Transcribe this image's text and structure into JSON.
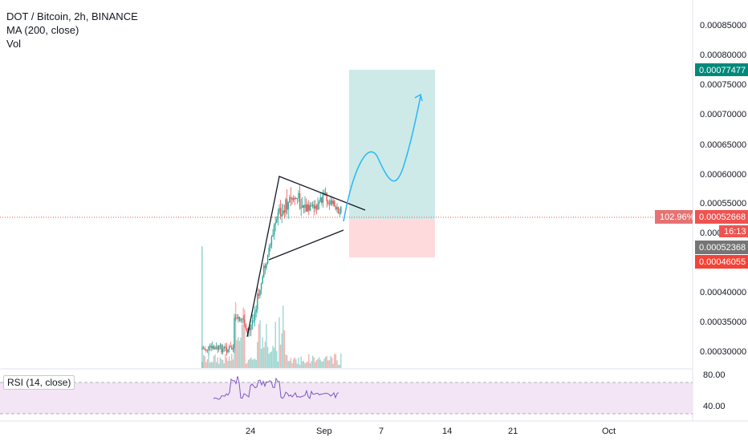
{
  "header": {
    "title": "DOT / Bitcoin, 2h, BINANCE",
    "ma_label": "MA (200, close)",
    "vol_label": "Vol"
  },
  "rsi": {
    "label": "RSI (14, close)",
    "levels": [
      "80.00",
      "40.00"
    ]
  },
  "price_axis": {
    "ticks": [
      "0.00085000",
      "0.00080000",
      "0.00075000",
      "0.00070000",
      "0.00065000",
      "0.00060000",
      "0.00055000",
      "0.00040000",
      "0.00035000",
      "0.00030000"
    ]
  },
  "time_axis": {
    "ticks": [
      "24",
      "Sep",
      "7",
      "14",
      "21",
      "Oct"
    ]
  },
  "badges": {
    "target": "0.00077477",
    "percent": "102.96%",
    "last_price": "0.00052668",
    "countdown": "16:13",
    "hidden_tick": "0.000",
    "ma_value": "0.00052368",
    "stop": "0.00046055"
  },
  "colors": {
    "up": "#26a69a",
    "down": "#ef5350",
    "target_zone": "#b2dfdb",
    "stop_zone": "#ffcdd2",
    "projection": "#29b6f6",
    "rsi": "#7e57c2",
    "rsi_band": "#f3e5f5",
    "last_price_line": "#ef5350",
    "ma_badge": "#757575",
    "target_badge": "#00897b",
    "stop_badge": "#f44336"
  },
  "chart_data": {
    "type": "candlestick",
    "series": [
      {
        "name": "DOT / Bitcoin",
        "note": "price candles, approx range 0.00030000–0.00059000"
      },
      {
        "name": "Vol",
        "note": "volume bars"
      },
      {
        "name": "RSI (14, close)",
        "note": "oscillator, approx range 35–75"
      }
    ],
    "ylim": [
      0.00028,
      0.00088
    ],
    "last_price": 0.00052668,
    "ma_value": 0.00052368,
    "long_position": {
      "target": 0.00077477,
      "entry": 0.00052668,
      "stop": 0.00046055,
      "gain_percent": 102.96
    },
    "triangle": {
      "apex_high": 0.000595,
      "lower_start": 0.000452
    }
  }
}
